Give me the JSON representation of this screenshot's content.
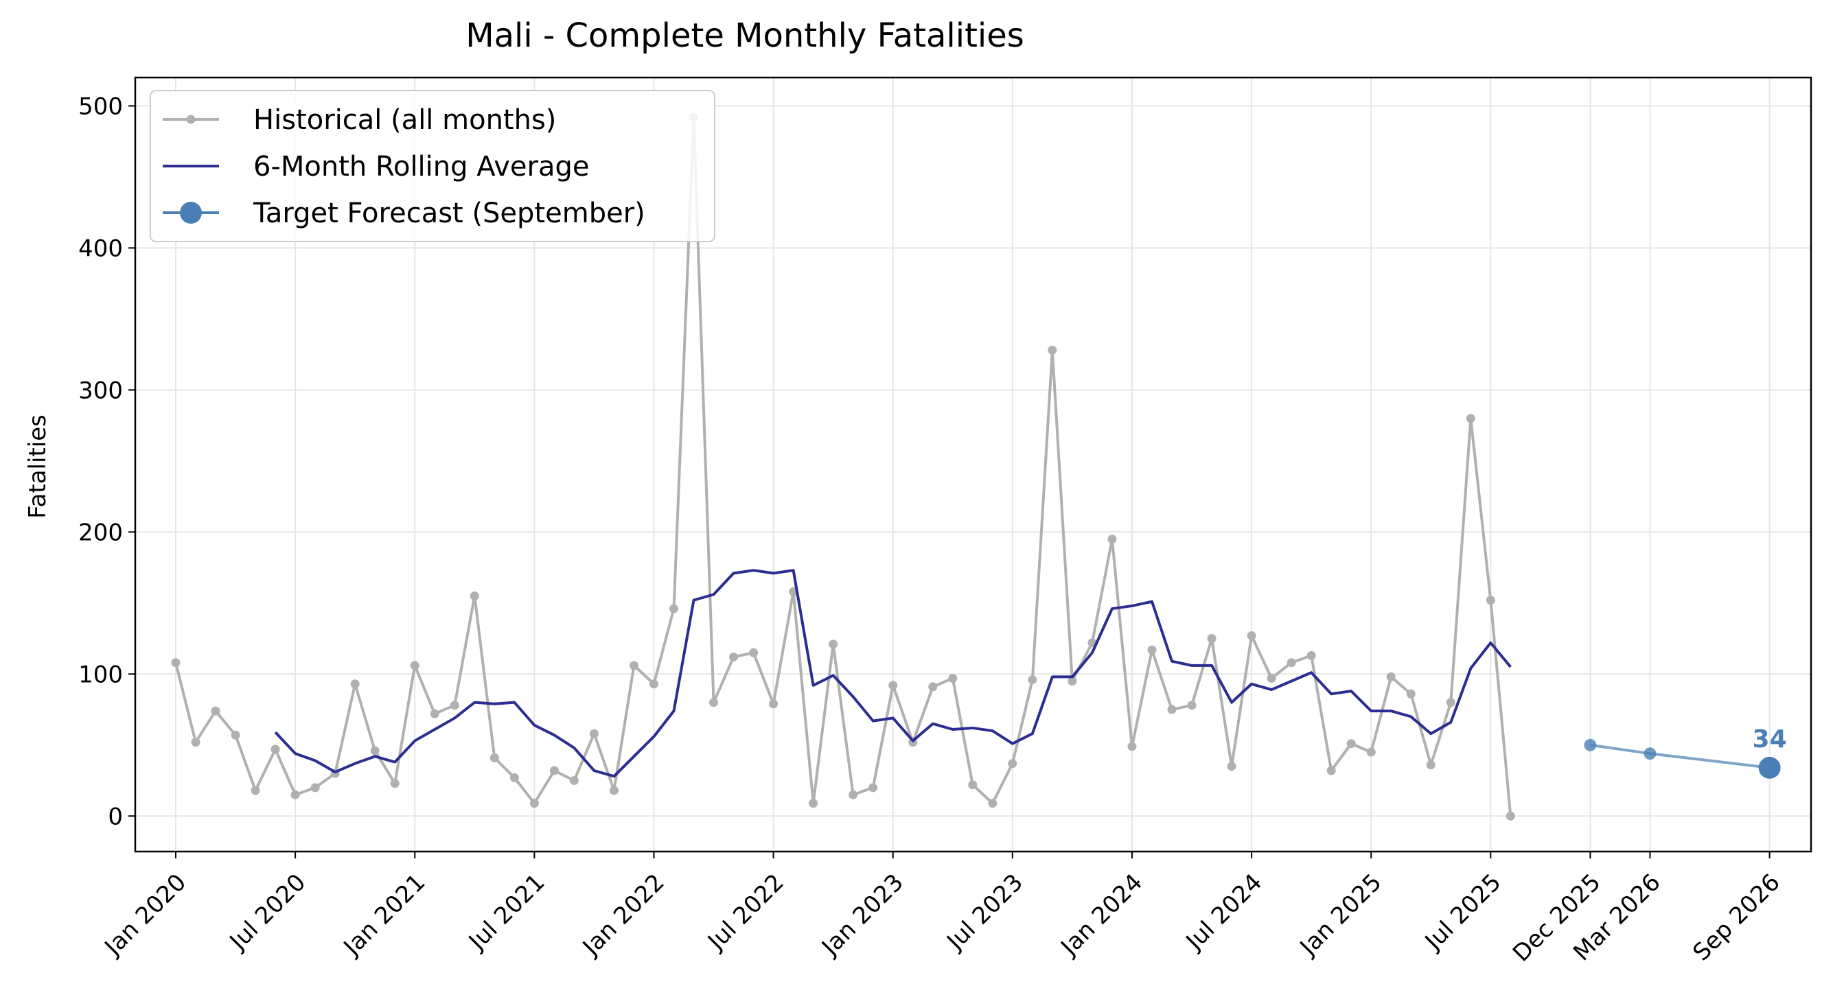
{
  "chart_data": {
    "type": "line",
    "title": "Mali - Complete Monthly Fatalities",
    "ylabel": "Fatalities",
    "xlabel": "",
    "ylim": [
      -25,
      520
    ],
    "yticks": [
      0,
      100,
      200,
      300,
      400,
      500
    ],
    "grid": true,
    "legend_position": "top-left",
    "x_ticks": [
      {
        "date": "2020-01",
        "label": "Jan 2020"
      },
      {
        "date": "2020-07",
        "label": "Jul 2020"
      },
      {
        "date": "2021-01",
        "label": "Jan 2021"
      },
      {
        "date": "2021-07",
        "label": "Jul 2021"
      },
      {
        "date": "2022-01",
        "label": "Jan 2022"
      },
      {
        "date": "2022-07",
        "label": "Jul 2022"
      },
      {
        "date": "2023-01",
        "label": "Jan 2023"
      },
      {
        "date": "2023-07",
        "label": "Jul 2023"
      },
      {
        "date": "2024-01",
        "label": "Jan 2024"
      },
      {
        "date": "2024-07",
        "label": "Jul 2024"
      },
      {
        "date": "2025-01",
        "label": "Jan 2025"
      },
      {
        "date": "2025-07",
        "label": "Jul 2025"
      },
      {
        "date": "2025-12",
        "label": "Dec 2025"
      },
      {
        "date": "2026-03",
        "label": "Mar 2026"
      },
      {
        "date": "2026-09",
        "label": "Sep 2026"
      }
    ],
    "series": [
      {
        "name": "Historical (all months)",
        "color": "#b0b0b0",
        "style": "line-with-small-markers",
        "x": [
          "2020-01",
          "2020-02",
          "2020-03",
          "2020-04",
          "2020-05",
          "2020-06",
          "2020-07",
          "2020-08",
          "2020-09",
          "2020-10",
          "2020-11",
          "2020-12",
          "2021-01",
          "2021-02",
          "2021-03",
          "2021-04",
          "2021-05",
          "2021-06",
          "2021-07",
          "2021-08",
          "2021-09",
          "2021-10",
          "2021-11",
          "2021-12",
          "2022-01",
          "2022-02",
          "2022-03",
          "2022-04",
          "2022-05",
          "2022-06",
          "2022-07",
          "2022-08",
          "2022-09",
          "2022-10",
          "2022-11",
          "2022-12",
          "2023-01",
          "2023-02",
          "2023-03",
          "2023-04",
          "2023-05",
          "2023-06",
          "2023-07",
          "2023-08",
          "2023-09",
          "2023-10",
          "2023-11",
          "2023-12",
          "2024-01",
          "2024-02",
          "2024-03",
          "2024-04",
          "2024-05",
          "2024-06",
          "2024-07",
          "2024-08",
          "2024-09",
          "2024-10",
          "2024-11",
          "2024-12",
          "2025-01",
          "2025-02",
          "2025-03",
          "2025-04",
          "2025-05",
          "2025-06",
          "2025-07",
          "2025-08"
        ],
        "values": [
          108,
          52,
          74,
          57,
          18,
          47,
          15,
          20,
          30,
          93,
          46,
          23,
          106,
          72,
          78,
          155,
          41,
          27,
          9,
          32,
          25,
          58,
          18,
          106,
          93,
          146,
          492,
          80,
          112,
          115,
          79,
          158,
          9,
          121,
          15,
          20,
          92,
          52,
          91,
          97,
          22,
          9,
          37,
          96,
          328,
          95,
          122,
          195,
          49,
          117,
          75,
          78,
          125,
          35,
          127,
          97,
          108,
          113,
          32,
          51,
          45,
          98,
          86,
          36,
          80,
          280,
          152,
          0
        ]
      },
      {
        "name": "6-Month Rolling Average",
        "color": "#2b2d91",
        "style": "line",
        "x": [
          "2020-06",
          "2020-07",
          "2020-08",
          "2020-09",
          "2020-10",
          "2020-11",
          "2020-12",
          "2021-01",
          "2021-02",
          "2021-03",
          "2021-04",
          "2021-05",
          "2021-06",
          "2021-07",
          "2021-08",
          "2021-09",
          "2021-10",
          "2021-11",
          "2021-12",
          "2022-01",
          "2022-02",
          "2022-03",
          "2022-04",
          "2022-05",
          "2022-06",
          "2022-07",
          "2022-08",
          "2022-09",
          "2022-10",
          "2022-11",
          "2022-12",
          "2023-01",
          "2023-02",
          "2023-03",
          "2023-04",
          "2023-05",
          "2023-06",
          "2023-07",
          "2023-08",
          "2023-09",
          "2023-10",
          "2023-11",
          "2023-12",
          "2024-01",
          "2024-02",
          "2024-03",
          "2024-04",
          "2024-05",
          "2024-06",
          "2024-07",
          "2024-08",
          "2024-09",
          "2024-10",
          "2024-11",
          "2024-12",
          "2025-01",
          "2025-02",
          "2025-03",
          "2025-04",
          "2025-05",
          "2025-06",
          "2025-07",
          "2025-08"
        ],
        "values": [
          59,
          44,
          39,
          31,
          37,
          42,
          38,
          53,
          61,
          69,
          80,
          79,
          80,
          64,
          57,
          48,
          32,
          28,
          42,
          56,
          74,
          152,
          156,
          171,
          173,
          171,
          173,
          92,
          99,
          84,
          67,
          69,
          53,
          65,
          61,
          62,
          60,
          51,
          58,
          98,
          98,
          115,
          146,
          148,
          151,
          109,
          106,
          106,
          80,
          93,
          89,
          95,
          101,
          86,
          88,
          74,
          74,
          70,
          58,
          66,
          104,
          122,
          105
        ]
      },
      {
        "name": "Target Forecast (September)",
        "color": "#4a7fb5",
        "style": "line-with-markers",
        "x": [
          "2025-12",
          "2026-03",
          "2026-09"
        ],
        "values": [
          50,
          44,
          34
        ]
      }
    ],
    "annotations": [
      {
        "x": "2026-09",
        "y": 34,
        "text": "34",
        "color": "#4a7fb5"
      }
    ]
  }
}
